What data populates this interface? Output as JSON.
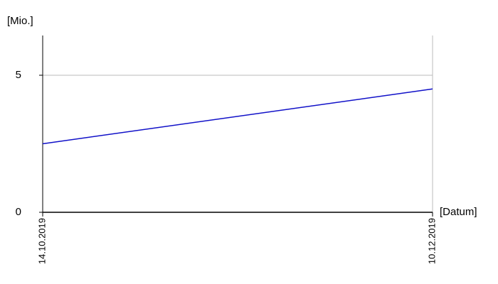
{
  "chart_data": {
    "type": "line",
    "y_label": "[Mio.]",
    "x_label": "[Datum]",
    "x": [
      "14.10.2019",
      "10.12.2019"
    ],
    "series": [
      {
        "color": "#1010c8",
        "values": [
          2.5,
          4.5
        ]
      }
    ],
    "ylim": [
      0,
      6.45
    ],
    "yticks": [
      0,
      5
    ],
    "grid": true
  }
}
